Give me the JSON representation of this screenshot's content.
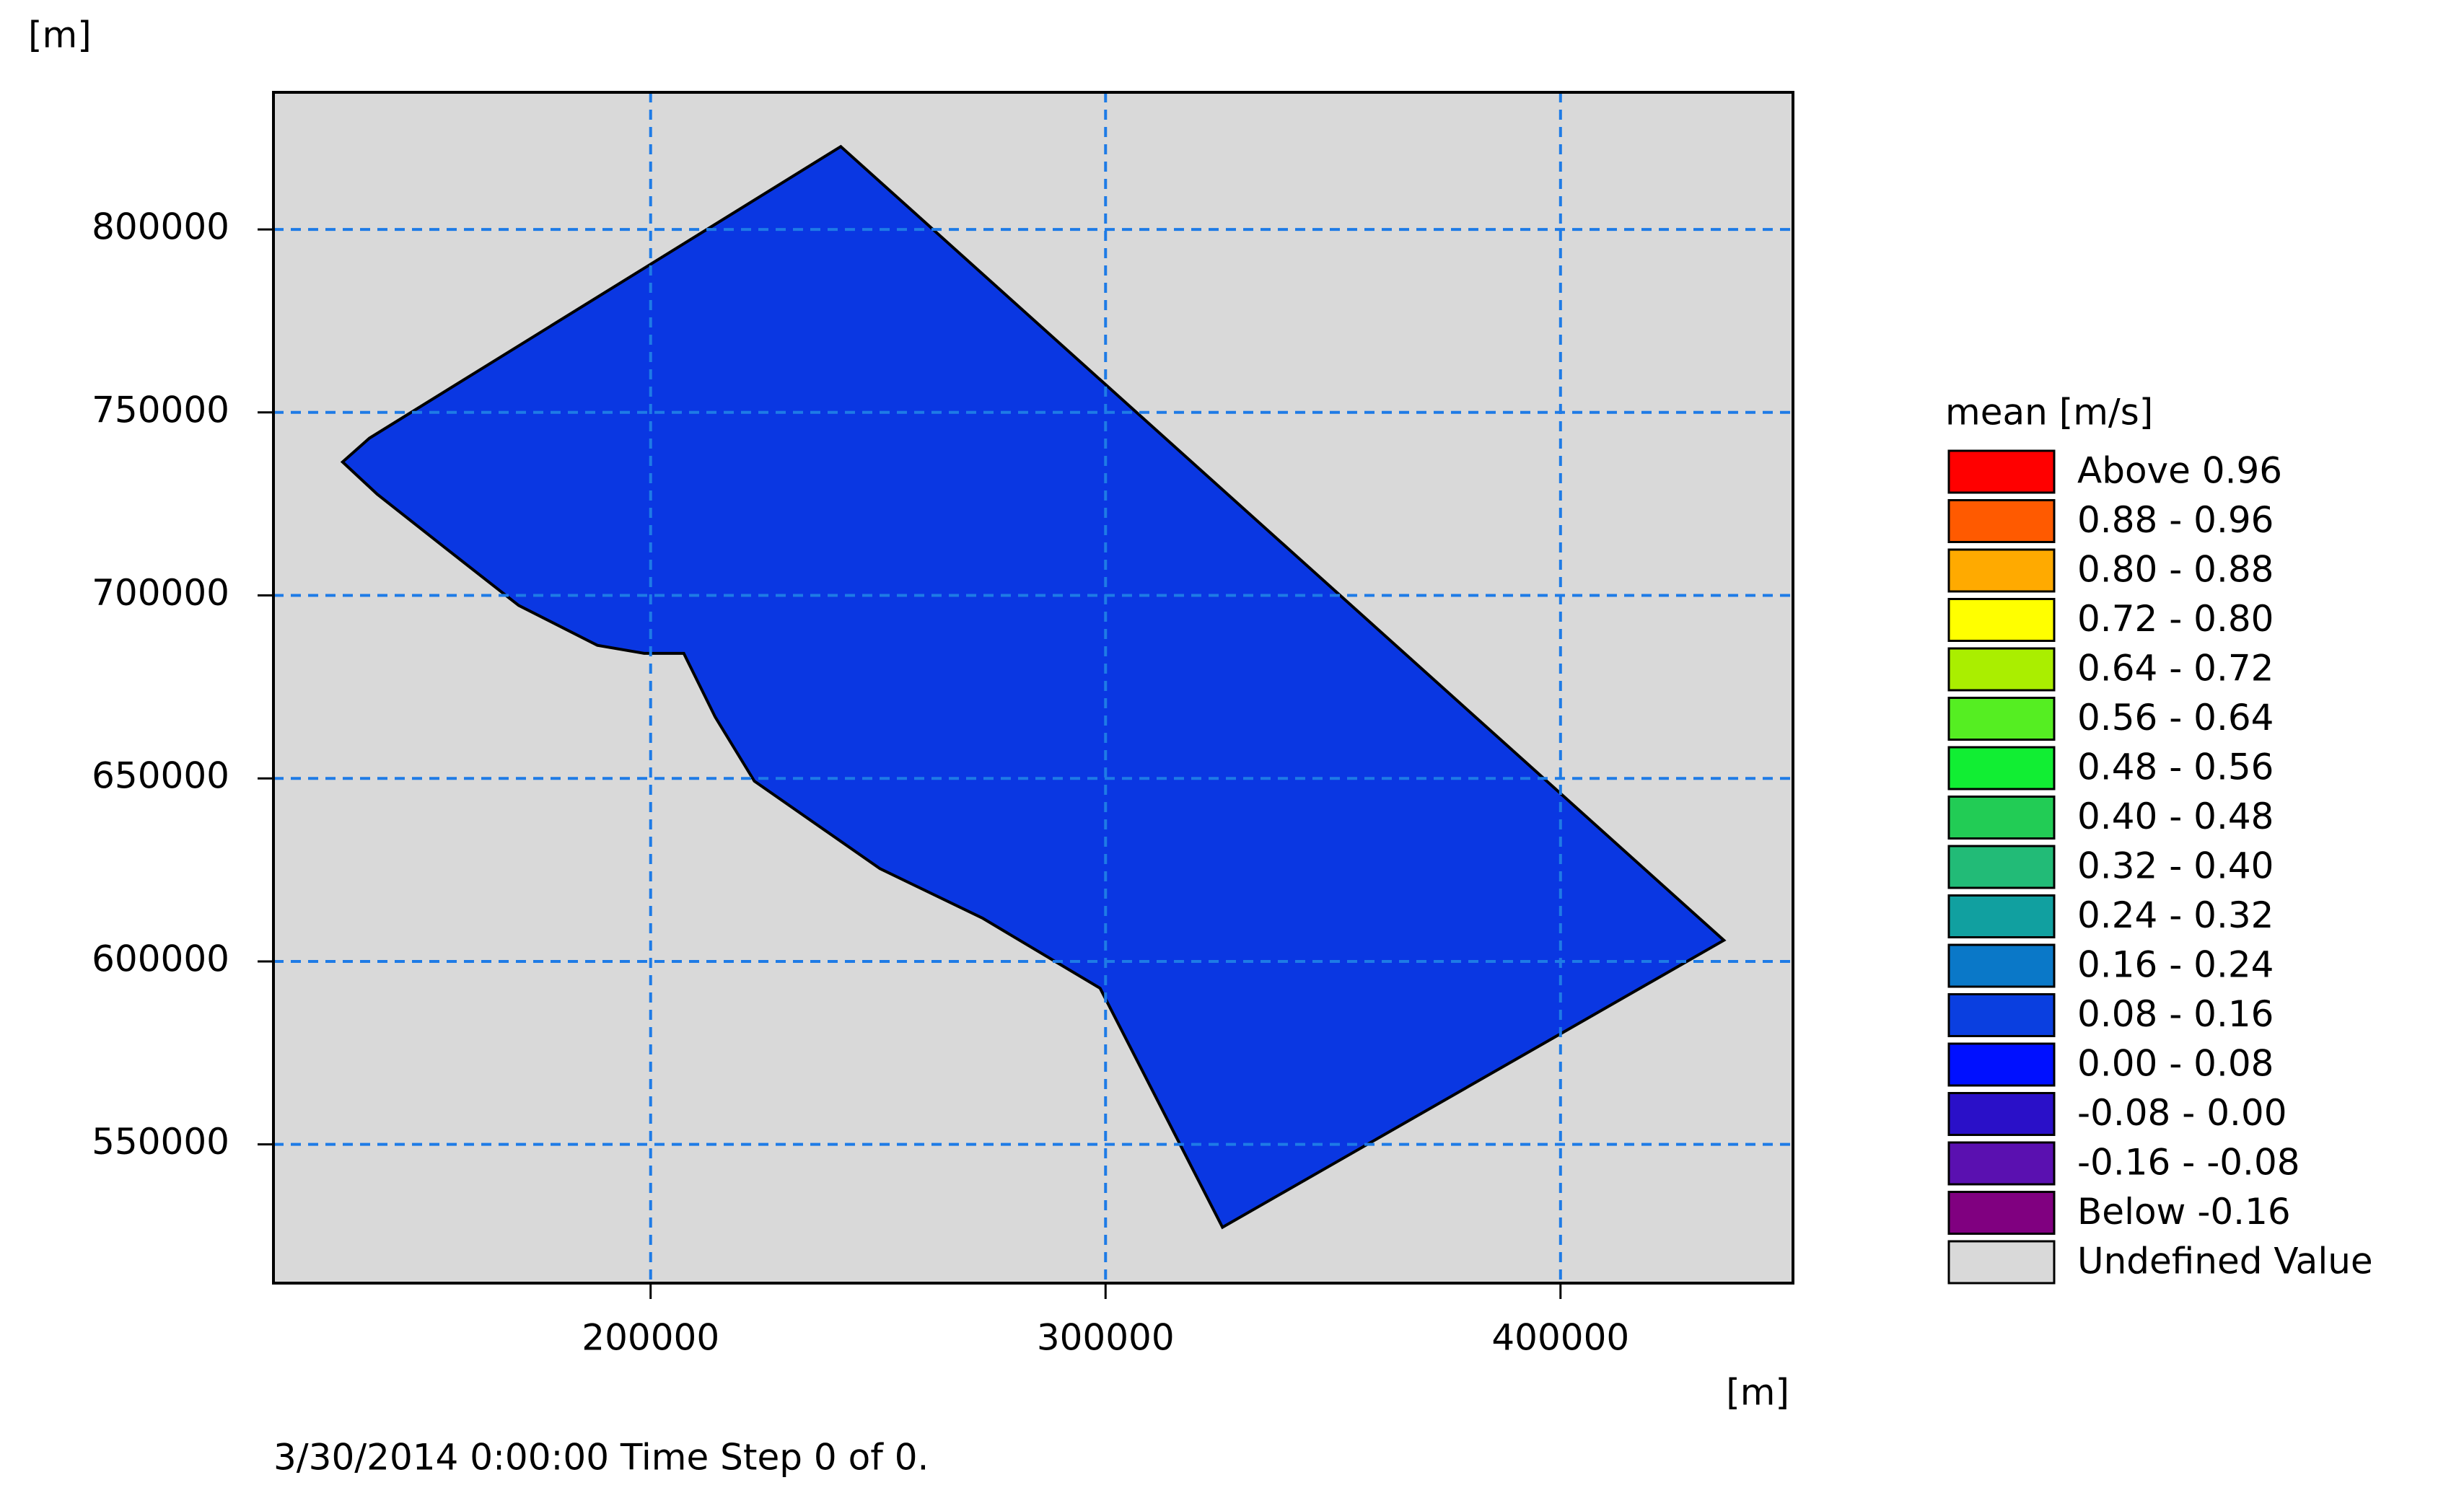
{
  "chart_data": {
    "type": "map",
    "y_unit": "[m]",
    "x_unit": "[m]",
    "footer": "3/30/2014 0:00:00  Time Step 0 of 0.",
    "xlim": [
      117100,
      451100
    ],
    "ylim": [
      512100,
      837460
    ],
    "xticks": [
      200000,
      300000,
      400000
    ],
    "yticks": [
      550000,
      600000,
      650000,
      700000,
      750000,
      800000
    ],
    "grid": true,
    "grid_color": "#1e7be6",
    "background": "#d9d9d9",
    "domain": {
      "color": "#0a37e2",
      "x": [
        241800,
        435900,
        325700,
        298800,
        272900,
        250400,
        222800,
        214200,
        207300,
        198600,
        188300,
        171000,
        155400,
        139900,
        132300,
        138200
      ],
      "y": [
        822650,
        605760,
        527360,
        592660,
        611860,
        625360,
        649260,
        666760,
        684160,
        684160,
        686360,
        697260,
        712460,
        727660,
        736460,
        742960
      ]
    },
    "legend": {
      "title": "mean [m/s]",
      "entries": [
        {
          "label": "Above  0.96",
          "color": "#ff0000"
        },
        {
          "label": "0.88 -  0.96",
          "color": "#ff5a00"
        },
        {
          "label": "0.80 -  0.88",
          "color": "#ffaa00"
        },
        {
          "label": "0.72 -  0.80",
          "color": "#ffff00"
        },
        {
          "label": "0.64 -  0.72",
          "color": "#aaee00"
        },
        {
          "label": "0.56 -  0.64",
          "color": "#55ee22"
        },
        {
          "label": "0.48 -  0.56",
          "color": "#11ee33"
        },
        {
          "label": "0.40 -  0.48",
          "color": "#22cc55"
        },
        {
          "label": "0.32 -  0.40",
          "color": "#22bb77"
        },
        {
          "label": "0.24 -  0.32",
          "color": "#11a0a0"
        },
        {
          "label": "0.16 -  0.24",
          "color": "#0a78c8"
        },
        {
          "label": "0.08 -  0.16",
          "color": "#0a3fe0"
        },
        {
          "label": "0.00 -  0.08",
          "color": "#0010ff"
        },
        {
          "label": "-0.08 -  0.00",
          "color": "#2a10c8"
        },
        {
          "label": "-0.16 - -0.08",
          "color": "#5a10b0"
        },
        {
          "label": "Below  -0.16",
          "color": "#800080"
        },
        {
          "label": "Undefined Value",
          "color": "#d9d9d9"
        }
      ]
    }
  }
}
